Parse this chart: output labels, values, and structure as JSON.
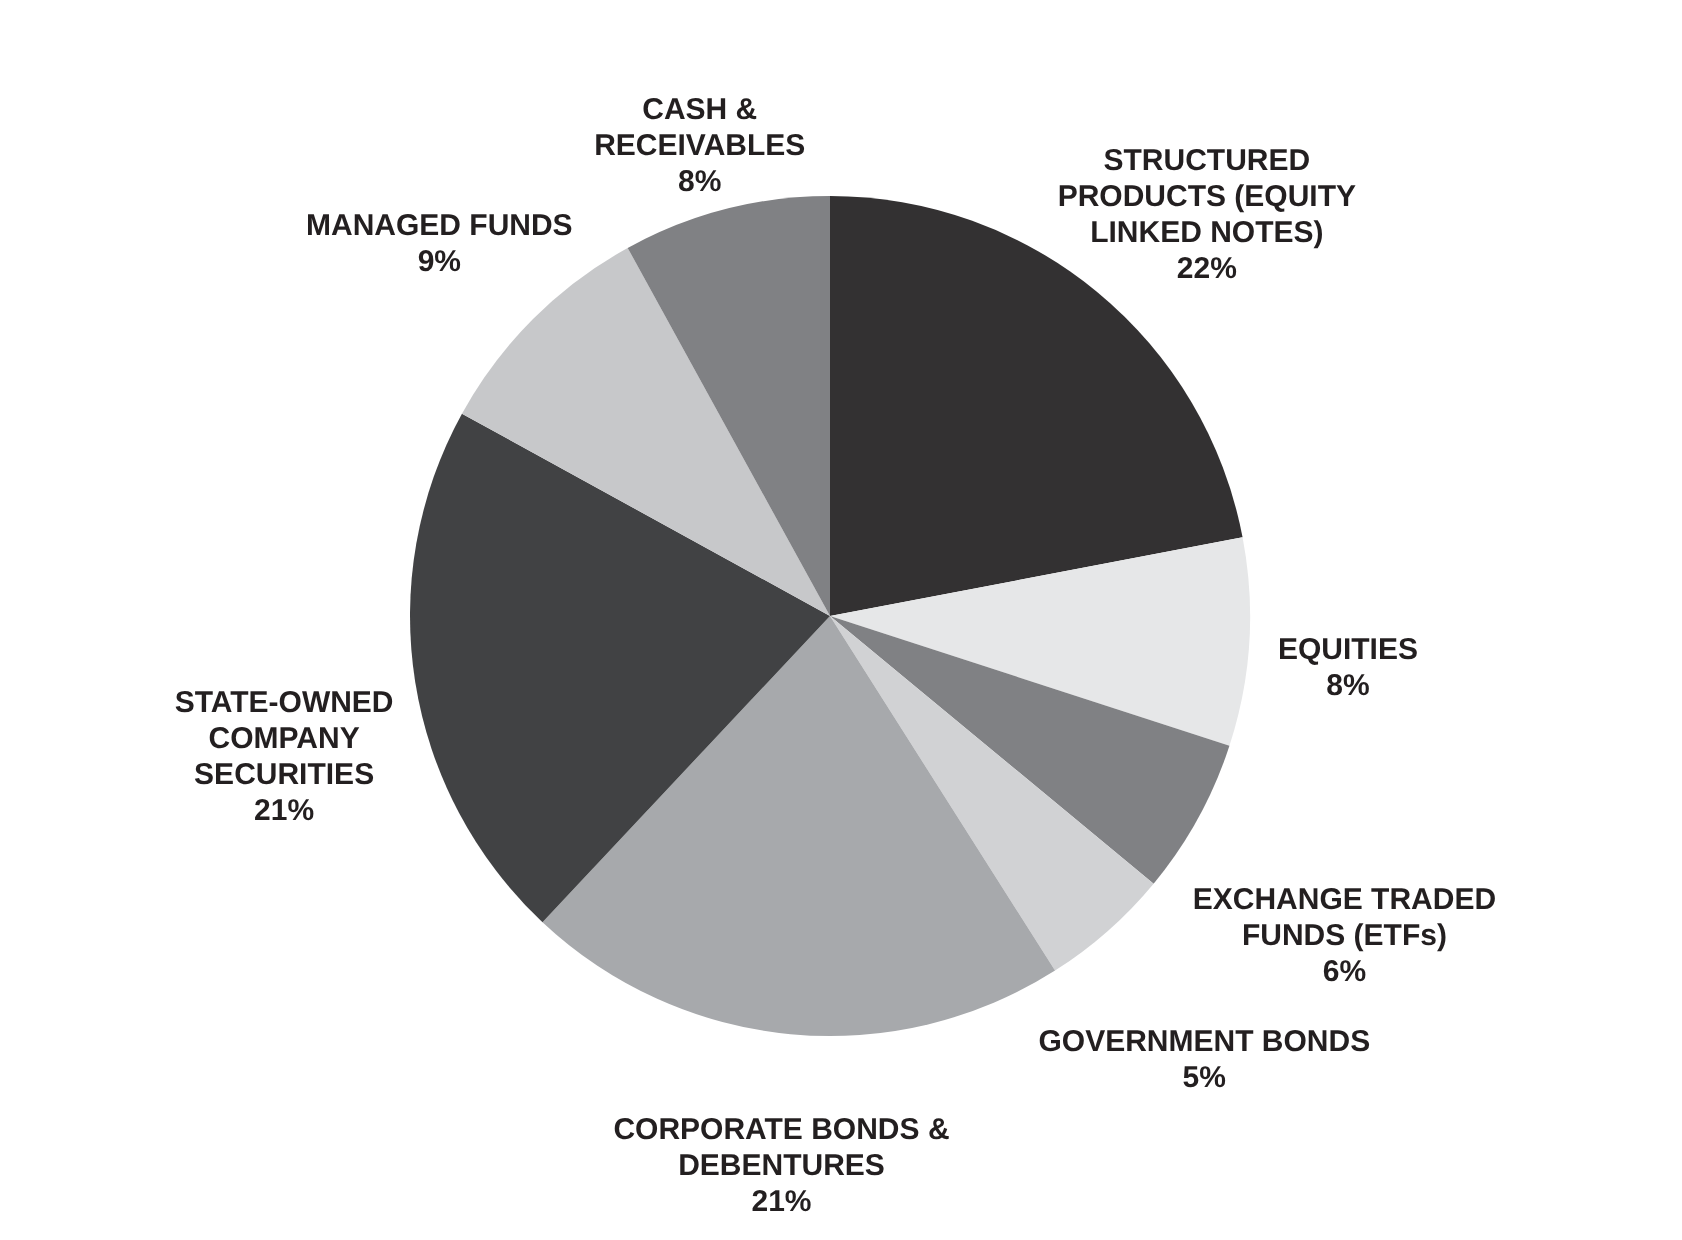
{
  "chart_data": {
    "type": "pie",
    "categories": [
      "STRUCTURED PRODUCTS (EQUITY LINKED NOTES)",
      "EQUITIES",
      "EXCHANGE TRADED FUNDS (ETFs)",
      "GOVERNMENT BONDS",
      "CORPORATE BONDS & DEBENTURES",
      "STATE-OWNED COMPANY SECURITIES",
      "MANAGED FUNDS",
      "CASH & RECEIVABLES"
    ],
    "values": [
      22,
      8,
      6,
      5,
      21,
      21,
      9,
      8
    ],
    "value_labels": [
      "22%",
      "8%",
      "6%",
      "5%",
      "21%",
      "21%",
      "9%",
      "8%"
    ],
    "colors": [
      "#333132",
      "#e6e7e8",
      "#808184",
      "#d1d2d4",
      "#a7a9ac",
      "#414244",
      "#c7c8ca",
      "#808184"
    ]
  }
}
